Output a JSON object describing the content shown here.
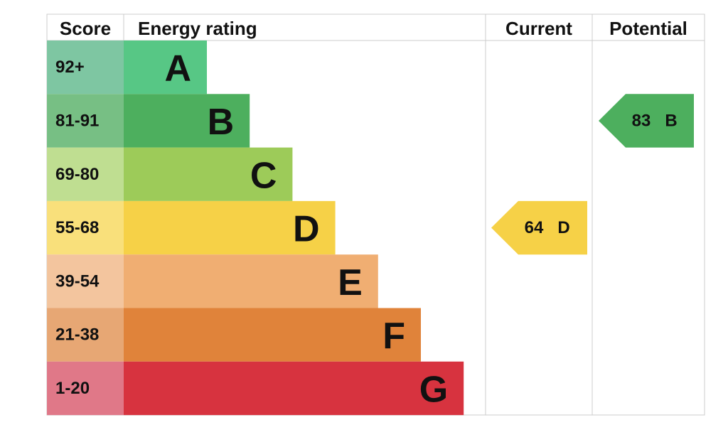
{
  "header": {
    "score": "Score",
    "rating": "Energy rating",
    "current": "Current",
    "potential": "Potential"
  },
  "rows": [
    {
      "score": "92+",
      "letter": "A",
      "color": "#57c785",
      "score_color": "#7ec6a2"
    },
    {
      "score": "81-91",
      "letter": "B",
      "color": "#4daf5e",
      "score_color": "#77bf84"
    },
    {
      "score": "69-80",
      "letter": "C",
      "color": "#9dcb59",
      "score_color": "#bfde91"
    },
    {
      "score": "55-68",
      "letter": "D",
      "color": "#f6d147",
      "score_color": "#f9e07b"
    },
    {
      "score": "39-54",
      "letter": "E",
      "color": "#f0ae72",
      "score_color": "#f3c59e"
    },
    {
      "score": "21-38",
      "letter": "F",
      "color": "#e0833a",
      "score_color": "#e7a774"
    },
    {
      "score": "1-20",
      "letter": "G",
      "color": "#d7333f",
      "score_color": "#e07888"
    }
  ],
  "current": {
    "value": 64,
    "letter": "D"
  },
  "potential": {
    "value": 83,
    "letter": "B"
  }
}
